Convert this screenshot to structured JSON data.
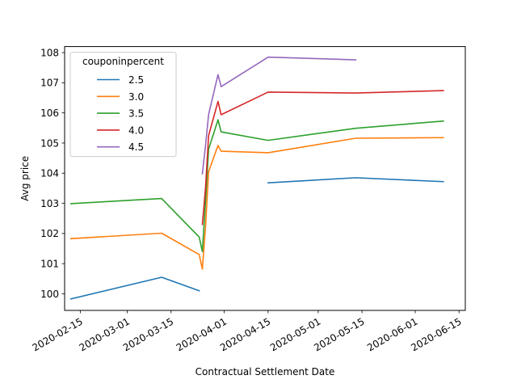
{
  "chart_data": {
    "type": "line",
    "title": "",
    "xlabel": "Contractual Settlement Date",
    "ylabel": "Avg price",
    "legend": {
      "title": "couponinpercent",
      "placement": "top-left"
    },
    "grid": false,
    "xlim": [
      "2020-02-10",
      "2020-06-17"
    ],
    "ylim": [
      99.45,
      108.2
    ],
    "x_ticks": [
      "2020-02-15",
      "2020-03-01",
      "2020-03-15",
      "2020-04-01",
      "2020-04-15",
      "2020-05-01",
      "2020-05-15",
      "2020-06-01",
      "2020-06-15"
    ],
    "y_ticks": [
      100,
      101,
      102,
      103,
      104,
      105,
      106,
      107,
      108
    ],
    "series": [
      {
        "name": "2.5",
        "color": "#1f77b4",
        "segments": [
          [
            [
              "2020-02-12",
              99.83
            ],
            [
              "2020-03-12",
              100.55
            ],
            [
              "2020-03-24",
              100.1
            ]
          ],
          [
            [
              "2020-04-15",
              103.68
            ],
            [
              "2020-05-13",
              103.85
            ],
            [
              "2020-06-10",
              103.72
            ]
          ]
        ]
      },
      {
        "name": "3.0",
        "color": "#ff7f0e",
        "segments": [
          [
            [
              "2020-02-12",
              101.83
            ],
            [
              "2020-03-12",
              102.01
            ],
            [
              "2020-03-24",
              101.3
            ],
            [
              "2020-03-25",
              100.82
            ],
            [
              "2020-03-26",
              102.2
            ],
            [
              "2020-03-27",
              104.05
            ],
            [
              "2020-03-30",
              104.92
            ],
            [
              "2020-03-31",
              104.73
            ],
            [
              "2020-04-15",
              104.68
            ],
            [
              "2020-05-13",
              105.16
            ],
            [
              "2020-06-10",
              105.18
            ]
          ]
        ]
      },
      {
        "name": "3.5",
        "color": "#2ca02c",
        "segments": [
          [
            [
              "2020-02-12",
              102.99
            ],
            [
              "2020-03-12",
              103.16
            ],
            [
              "2020-03-24",
              101.88
            ],
            [
              "2020-03-25",
              101.4
            ],
            [
              "2020-03-26",
              103.05
            ],
            [
              "2020-03-27",
              104.8
            ],
            [
              "2020-03-30",
              105.77
            ],
            [
              "2020-03-31",
              105.37
            ],
            [
              "2020-04-15",
              105.09
            ],
            [
              "2020-05-13",
              105.49
            ],
            [
              "2020-06-10",
              105.73
            ]
          ]
        ]
      },
      {
        "name": "4.0",
        "color": "#d62728",
        "segments": [
          [
            [
              "2020-03-25",
              102.3
            ],
            [
              "2020-03-26",
              103.5
            ],
            [
              "2020-03-27",
              105.25
            ],
            [
              "2020-03-30",
              106.38
            ],
            [
              "2020-03-31",
              105.94
            ],
            [
              "2020-04-15",
              106.69
            ],
            [
              "2020-05-13",
              106.66
            ],
            [
              "2020-06-10",
              106.74
            ]
          ]
        ]
      },
      {
        "name": "4.5",
        "color": "#9467bd",
        "segments": [
          [
            [
              "2020-03-25",
              103.98
            ],
            [
              "2020-03-26",
              104.9
            ],
            [
              "2020-03-27",
              105.95
            ],
            [
              "2020-03-30",
              107.27
            ],
            [
              "2020-03-31",
              106.87
            ],
            [
              "2020-04-15",
              107.85
            ],
            [
              "2020-05-13",
              107.76
            ]
          ]
        ]
      }
    ]
  }
}
